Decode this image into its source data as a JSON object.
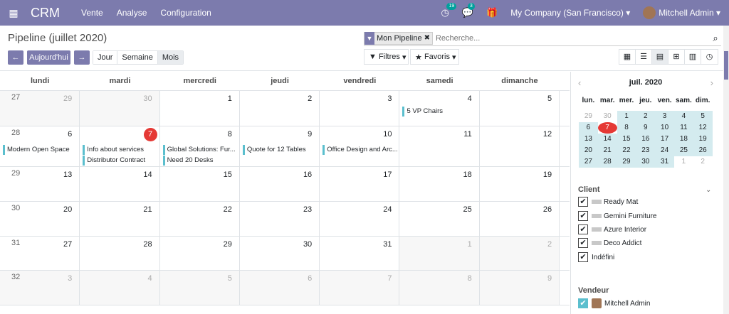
{
  "navbar": {
    "brand": "CRM",
    "menus": [
      "Vente",
      "Analyse",
      "Configuration"
    ],
    "badge_activity": "19",
    "badge_messages": "3",
    "company": "My Company (San Francisco)",
    "user": "Mitchell Admin"
  },
  "control": {
    "title": "Pipeline (juillet 2020)",
    "facet_label": "Mon Pipeline",
    "search_placeholder": "Recherche...",
    "today_label": "Aujourd'hui",
    "scales": [
      "Jour",
      "Semaine",
      "Mois"
    ],
    "filters_label": "Filtres",
    "favorites_label": "Favoris"
  },
  "calendar": {
    "days": [
      "lundi",
      "mardi",
      "mercredi",
      "jeudi",
      "vendredi",
      "samedi",
      "dimanche"
    ],
    "weeks": [
      {
        "week": "27",
        "days": [
          "29",
          "30",
          "1",
          "2",
          "3",
          "4",
          "5"
        ]
      },
      {
        "week": "28",
        "days": [
          "6",
          "7",
          "8",
          "9",
          "10",
          "11",
          "12"
        ]
      },
      {
        "week": "29",
        "days": [
          "13",
          "14",
          "15",
          "16",
          "17",
          "18",
          "19"
        ]
      },
      {
        "week": "30",
        "days": [
          "20",
          "21",
          "22",
          "23",
          "24",
          "25",
          "26"
        ]
      },
      {
        "week": "31",
        "days": [
          "27",
          "28",
          "29",
          "30",
          "31",
          "1",
          "2"
        ]
      },
      {
        "week": "32",
        "days": [
          "3",
          "4",
          "5",
          "6",
          "7",
          "8",
          "9"
        ]
      }
    ],
    "events": {
      "e1": "5 VP Chairs",
      "e2": "Modern Open Space",
      "e3": "Info about services",
      "e4": "Distributor Contract",
      "e5": "Global Solutions: Fur...",
      "e6": "Need 20 Desks",
      "e7": "Quote for 12 Tables",
      "e8": "Office Design and Arc..."
    }
  },
  "sidebar": {
    "month": "juil. 2020",
    "dow": [
      "lun.",
      "mar.",
      "mer.",
      "jeu.",
      "ven.",
      "sam.",
      "dim."
    ],
    "mini_weeks": [
      [
        "29",
        "30",
        "1",
        "2",
        "3",
        "4",
        "5"
      ],
      [
        "6",
        "7",
        "8",
        "9",
        "10",
        "11",
        "12"
      ],
      [
        "13",
        "14",
        "15",
        "16",
        "17",
        "18",
        "19"
      ],
      [
        "20",
        "21",
        "22",
        "23",
        "24",
        "25",
        "26"
      ],
      [
        "27",
        "28",
        "29",
        "30",
        "31",
        "1",
        "2"
      ]
    ],
    "client_title": "Client",
    "clients": [
      "Ready Mat",
      "Gemini Furniture",
      "Azure Interior",
      "Deco Addict",
      "Indéfini"
    ],
    "vendeur_title": "Vendeur",
    "vendeurs": [
      "Mitchell Admin"
    ]
  }
}
